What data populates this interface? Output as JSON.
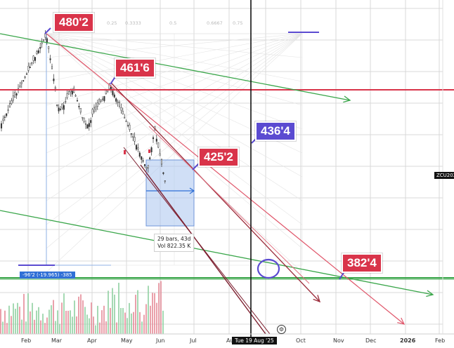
{
  "callouts": {
    "c480": "480'2",
    "c461": "461'6",
    "c436": "436'4",
    "c425": "425'2",
    "c382": "382'4"
  },
  "x_axis": {
    "labels": [
      "Feb",
      "Mar",
      "Apr",
      "May",
      "Jun",
      "Jul",
      "Au",
      "Oct",
      "Nov",
      "Dec",
      "2026",
      "Feb"
    ],
    "cursor_date": "Tue 19 Aug '25"
  },
  "measure_tooltip": {
    "line1": "29 bars, 43d",
    "line2": "Vol 822.35 K"
  },
  "measure_badge": "-96'2 (-19.965) -385",
  "ticker": "ZCU202",
  "fib_labels": [
    "0.25",
    "0.3333",
    "0.5",
    "0.6667",
    "0.75"
  ],
  "colors": {
    "red": "#d9344a",
    "purple": "#5b4bd1",
    "green": "#3aa64a",
    "dark_red": "#8b2a3a",
    "blue": "#2f6fd6",
    "grid": "#d9d9d9"
  },
  "icons": {
    "settings": "settings-icon"
  }
}
